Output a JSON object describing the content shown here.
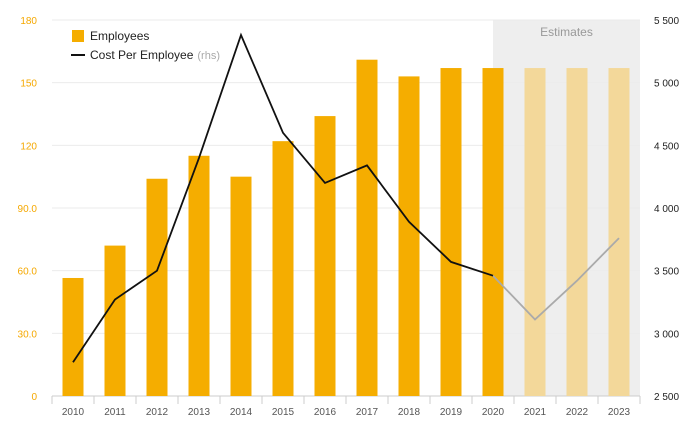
{
  "chart_data": {
    "type": "bar+line",
    "categories": [
      "2010",
      "2011",
      "2012",
      "2013",
      "2014",
      "2015",
      "2016",
      "2017",
      "2018",
      "2019",
      "2020",
      "2021",
      "2022",
      "2023"
    ],
    "series": [
      {
        "name": "Employees",
        "axis": "left",
        "type": "bar",
        "color": "#f5ad00",
        "estimate_color": "#f3d89a",
        "values": [
          56.5,
          72,
          104,
          115,
          105,
          122,
          134,
          161,
          153,
          157,
          157,
          157,
          157,
          157
        ]
      },
      {
        "name": "Cost Per Employee",
        "axis_note": "(rhs)",
        "axis": "right",
        "type": "line",
        "color": "#111111",
        "estimate_color": "#aaaaaa",
        "values": [
          2770,
          3270,
          3500,
          4400,
          5380,
          4600,
          4200,
          4340,
          3890,
          3570,
          3460,
          3110,
          3420,
          3760
        ]
      }
    ],
    "estimates_from_index": 11,
    "estimates_label": "Estimates",
    "estimates_band_start": "2020",
    "left_axis": {
      "min": 0,
      "max": 180,
      "ticks": [
        "0",
        "30.0",
        "60.0",
        "90.0",
        "120",
        "150",
        "180"
      ]
    },
    "right_axis": {
      "min": 2500,
      "max": 5500,
      "ticks": [
        "2 500",
        "3 000",
        "3 500",
        "4 000",
        "4 500",
        "5 000",
        "5 500"
      ]
    },
    "grid": true,
    "legend_position": "top-left",
    "legend": {
      "bar_label": "Employees",
      "line_label": "Cost Per Employee",
      "line_suffix": "(rhs)"
    }
  }
}
